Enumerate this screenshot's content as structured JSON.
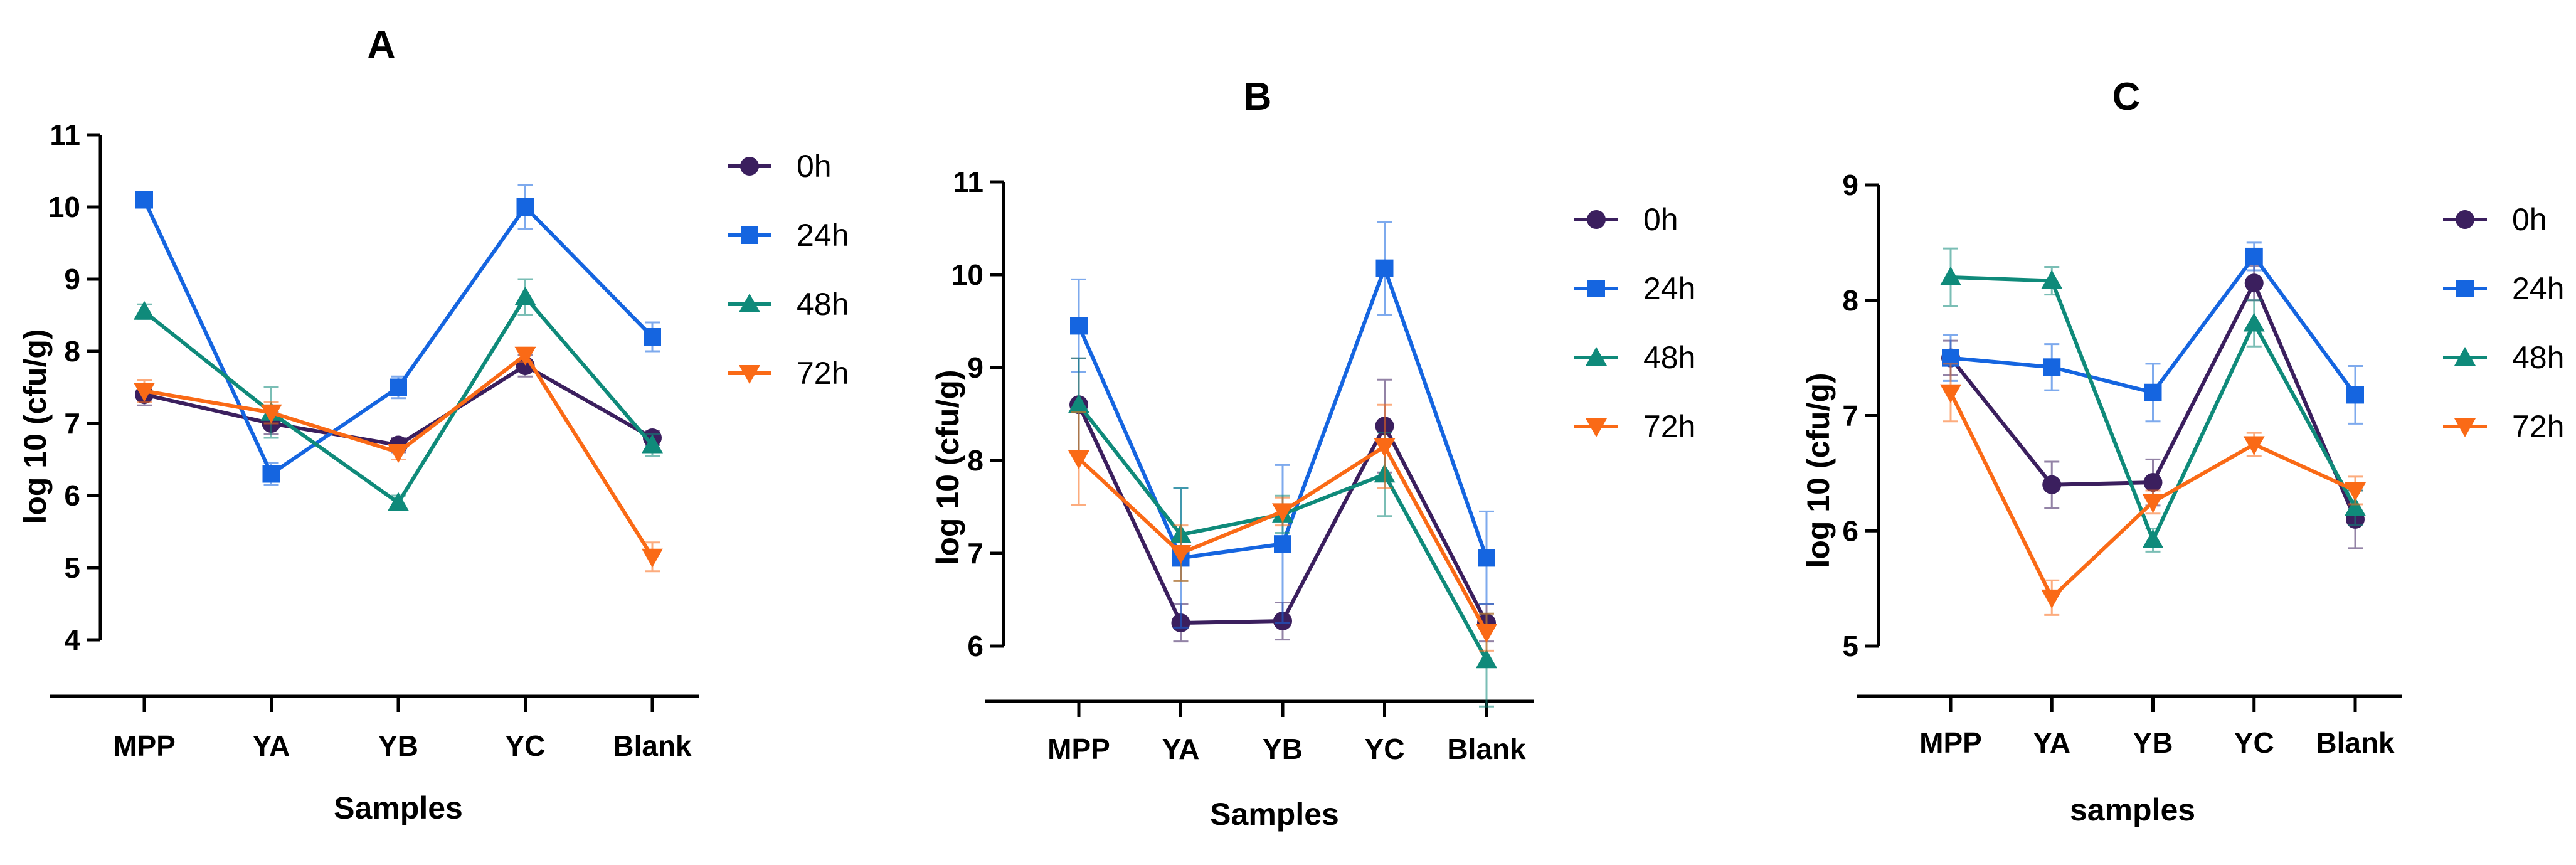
{
  "colors": {
    "0h": "#3b1f5e",
    "24h": "#1565e0",
    "48h": "#0f8a7a",
    "72h": "#fa6a16"
  },
  "chart_data": [
    {
      "type": "line",
      "title": "A",
      "xlabel": "Samples",
      "ylabel": "log 10 (cfu/g)",
      "categories": [
        "MPP",
        "YA",
        "YB",
        "YC",
        "Blank"
      ],
      "ylim": [
        4,
        11
      ],
      "yticks": [
        4,
        5,
        6,
        7,
        8,
        9,
        10,
        11
      ],
      "series": [
        {
          "name": "0h",
          "marker": "circle",
          "values": [
            7.4,
            7.0,
            6.7,
            7.8,
            6.8
          ],
          "errors": [
            0.15,
            0.15,
            0.1,
            0.15,
            0.1
          ]
        },
        {
          "name": "24h",
          "marker": "square",
          "values": [
            10.1,
            6.3,
            7.5,
            10.0,
            8.2
          ],
          "errors": [
            0.1,
            0.15,
            0.15,
            0.3,
            0.2
          ]
        },
        {
          "name": "48h",
          "marker": "triangle-up",
          "values": [
            8.55,
            7.15,
            5.9,
            8.75,
            6.7
          ],
          "errors": [
            0.1,
            0.35,
            0.1,
            0.25,
            0.15
          ]
        },
        {
          "name": "72h",
          "marker": "triangle-down",
          "values": [
            7.45,
            7.15,
            6.6,
            7.95,
            5.15
          ],
          "errors": [
            0.15,
            0.15,
            0.1,
            0.1,
            0.2
          ]
        }
      ]
    },
    {
      "type": "line",
      "title": "B",
      "xlabel": "Samples",
      "ylabel": "log 10 (cfu/g)",
      "categories": [
        "MPP",
        "YA",
        "YB",
        "YC",
        "Blank"
      ],
      "ylim": [
        6,
        11
      ],
      "yticks": [
        6,
        7,
        8,
        9,
        10,
        11
      ],
      "series": [
        {
          "name": "0h",
          "marker": "circle",
          "values": [
            8.6,
            6.25,
            6.27,
            8.37,
            6.25
          ],
          "errors": [
            0.5,
            0.2,
            0.2,
            0.5,
            0.2
          ]
        },
        {
          "name": "24h",
          "marker": "square",
          "values": [
            9.45,
            6.95,
            7.1,
            10.07,
            6.95
          ],
          "errors": [
            0.5,
            0.75,
            0.85,
            0.5,
            0.5
          ]
        },
        {
          "name": "48h",
          "marker": "triangle-up",
          "values": [
            8.6,
            7.2,
            7.42,
            7.85,
            5.85
          ],
          "errors": [
            0.5,
            0.5,
            0.2,
            0.45,
            0.5
          ]
        },
        {
          "name": "72h",
          "marker": "triangle-down",
          "values": [
            8.02,
            7.0,
            7.45,
            8.15,
            6.15
          ],
          "errors": [
            0.5,
            0.3,
            0.15,
            0.45,
            0.2
          ]
        }
      ]
    },
    {
      "type": "line",
      "title": "C",
      "xlabel": "samples",
      "ylabel": "log 10 (cfu/g)",
      "categories": [
        "MPP",
        "YA",
        "YB",
        "YC",
        "Blank"
      ],
      "ylim": [
        5,
        9
      ],
      "yticks": [
        5,
        6,
        7,
        8,
        9
      ],
      "series": [
        {
          "name": "0h",
          "marker": "circle",
          "values": [
            7.5,
            6.4,
            6.42,
            8.15,
            6.1
          ],
          "errors": [
            0.15,
            0.2,
            0.2,
            0.15,
            0.25
          ]
        },
        {
          "name": "24h",
          "marker": "square",
          "values": [
            7.5,
            7.42,
            7.2,
            8.38,
            7.18
          ],
          "errors": [
            0.2,
            0.2,
            0.25,
            0.12,
            0.25
          ]
        },
        {
          "name": "48h",
          "marker": "triangle-up",
          "values": [
            8.2,
            8.17,
            5.92,
            7.8,
            6.2
          ],
          "errors": [
            0.25,
            0.12,
            0.1,
            0.2,
            0.15
          ]
        },
        {
          "name": "72h",
          "marker": "triangle-down",
          "values": [
            7.2,
            5.42,
            6.25,
            6.75,
            6.35
          ],
          "errors": [
            0.25,
            0.15,
            0.1,
            0.1,
            0.12
          ]
        }
      ]
    }
  ]
}
